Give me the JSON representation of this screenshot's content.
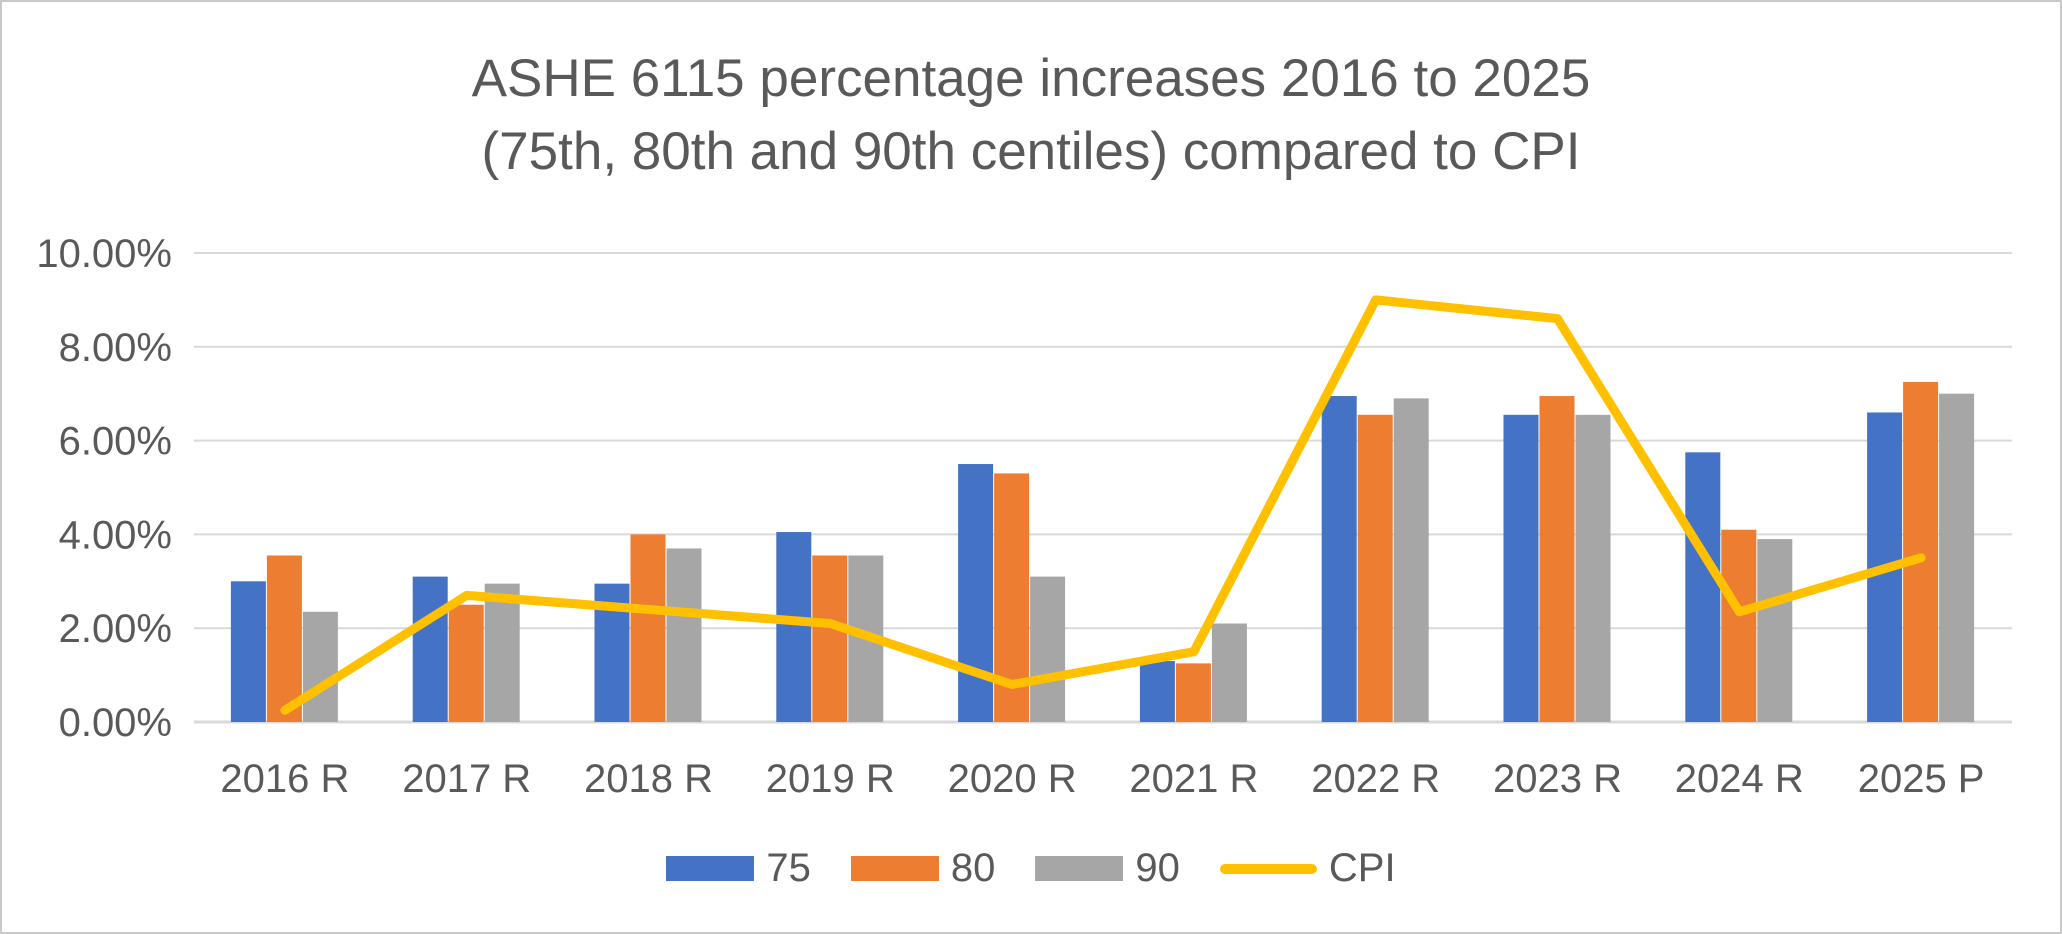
{
  "frame": {
    "background_color": "#FFFFFF",
    "border_color": "#C9C9C9"
  },
  "title": {
    "line1": "ASHE 6115 percentage increases 2016 to 2025",
    "line2": "(75th, 80th and 90th centiles) compared to CPI",
    "color": "#595959"
  },
  "chart_data": {
    "type": "bar",
    "subtype": "grouped bars with line overlay",
    "categories": [
      "2016 R",
      "2017 R",
      "2018 R",
      "2019 R",
      "2020 R",
      "2021 R",
      "2022 R",
      "2023 R",
      "2024 R",
      "2025 P"
    ],
    "series": [
      {
        "name": "75",
        "type": "bar",
        "color": "#4472C4",
        "values": [
          3.0,
          3.1,
          2.95,
          4.05,
          5.5,
          1.3,
          6.95,
          6.55,
          5.75,
          6.6
        ]
      },
      {
        "name": "80",
        "type": "bar",
        "color": "#ED7D31",
        "values": [
          3.55,
          2.5,
          4.0,
          3.55,
          5.3,
          1.25,
          6.55,
          6.95,
          4.1,
          7.25
        ]
      },
      {
        "name": "90",
        "type": "bar",
        "color": "#A6A6A6",
        "values": [
          2.35,
          2.95,
          3.7,
          3.55,
          3.1,
          2.1,
          6.9,
          6.55,
          3.9,
          7.0
        ]
      },
      {
        "name": "CPI",
        "type": "line",
        "color": "#FFC000",
        "values": [
          0.25,
          2.7,
          2.4,
          2.1,
          0.8,
          1.5,
          9.0,
          8.6,
          2.35,
          3.5
        ]
      }
    ],
    "xlabel": "",
    "ylabel": "",
    "ylim": [
      0,
      10
    ],
    "y_tick_values": [
      0,
      2,
      4,
      6,
      8,
      10
    ],
    "y_tick_labels": [
      "0.00%",
      "2.00%",
      "4.00%",
      "6.00%",
      "8.00%",
      "10.00%"
    ],
    "grid": true,
    "gridline_color": "#D9D9D9",
    "axis_label_color": "#595959",
    "legend_position": "bottom",
    "legend_labels": [
      "75",
      "80",
      "90",
      "CPI"
    ]
  }
}
